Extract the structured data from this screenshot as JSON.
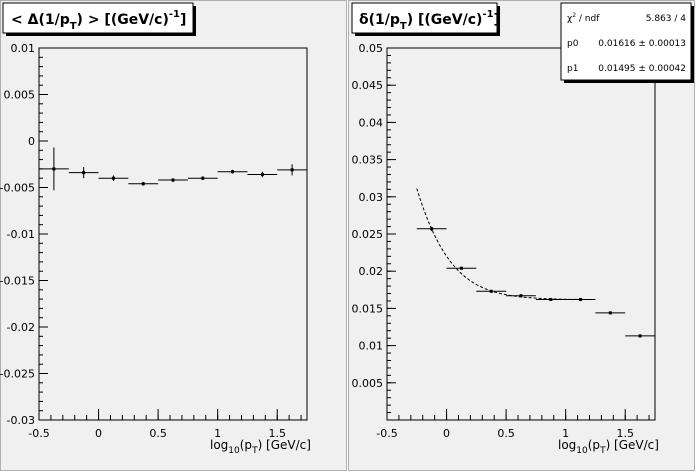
{
  "chart_data": [
    {
      "type": "scatter",
      "title_main": "< Δ(1/p",
      "title_sub": "T",
      "title_end": ") >  [(GeV/c)",
      "title_sup": "-1",
      "title_close": "]",
      "xlabel_main": "log",
      "xlabel_sub1": "10",
      "xlabel_mid": "(p",
      "xlabel_sub2": "T",
      "xlabel_end": ")  [GeV/c]",
      "xlim": [
        -0.5,
        1.75
      ],
      "ylim": [
        -0.03,
        0.01
      ],
      "x_ticks": [
        -0.5,
        0,
        0.5,
        1,
        1.5
      ],
      "x_tick_labels": [
        "-0.5",
        "0",
        "0.5",
        "1",
        "1.5"
      ],
      "y_ticks": [
        -0.03,
        -0.025,
        -0.02,
        -0.015,
        -0.01,
        -0.005,
        0,
        0.005,
        0.01
      ],
      "y_tick_labels": [
        "-0.03",
        "-0.025",
        "-0.02",
        "-0.015",
        "-0.01",
        "-0.005",
        "0",
        "0.005",
        "0.01"
      ],
      "points": [
        {
          "x": -0.375,
          "y": -0.003,
          "xerr": 0.125,
          "yerr": 0.0023
        },
        {
          "x": -0.125,
          "y": -0.0034,
          "xerr": 0.125,
          "yerr": 0.0006
        },
        {
          "x": 0.125,
          "y": -0.004,
          "xerr": 0.125,
          "yerr": 0.0003
        },
        {
          "x": 0.375,
          "y": -0.0046,
          "xerr": 0.125,
          "yerr": 0.0002
        },
        {
          "x": 0.625,
          "y": -0.0042,
          "xerr": 0.125,
          "yerr": 0.0002
        },
        {
          "x": 0.875,
          "y": -0.004,
          "xerr": 0.125,
          "yerr": 0.0002
        },
        {
          "x": 1.125,
          "y": -0.0033,
          "xerr": 0.125,
          "yerr": 0.0002
        },
        {
          "x": 1.375,
          "y": -0.0036,
          "xerr": 0.125,
          "yerr": 0.0003
        },
        {
          "x": 1.625,
          "y": -0.0031,
          "xerr": 0.125,
          "yerr": 0.0006
        }
      ]
    },
    {
      "type": "scatter",
      "title_main": "δ(1/p",
      "title_sub": "T",
      "title_end": ")  [(GeV/c)",
      "title_sup": "-1",
      "title_close": "]",
      "xlabel_main": "log",
      "xlabel_sub1": "10",
      "xlabel_mid": "(p",
      "xlabel_sub2": "T",
      "xlabel_end": ")  [GeV/c]",
      "xlim": [
        -0.5,
        1.75
      ],
      "ylim": [
        0,
        0.05
      ],
      "x_ticks": [
        -0.5,
        0,
        0.5,
        1,
        1.5
      ],
      "x_tick_labels": [
        "-0.5",
        "0",
        "0.5",
        "1",
        "1.5"
      ],
      "y_ticks": [
        0.005,
        0.01,
        0.015,
        0.02,
        0.025,
        0.03,
        0.035,
        0.04,
        0.045,
        0.05
      ],
      "y_tick_labels": [
        "0.005",
        "0.01",
        "0.015",
        "0.02",
        "0.025",
        "0.03",
        "0.035",
        "0.04",
        "0.045",
        "0.05"
      ],
      "points": [
        {
          "x": -0.125,
          "y": 0.0257,
          "xerr": 0.125,
          "yerr": 0.0003
        },
        {
          "x": 0.125,
          "y": 0.0204,
          "xerr": 0.125,
          "yerr": 0.0002
        },
        {
          "x": 0.375,
          "y": 0.0173,
          "xerr": 0.125,
          "yerr": 0.0002
        },
        {
          "x": 0.625,
          "y": 0.0167,
          "xerr": 0.125,
          "yerr": 0.0002
        },
        {
          "x": 0.875,
          "y": 0.0162,
          "xerr": 0.125,
          "yerr": 0.0002
        },
        {
          "x": 1.125,
          "y": 0.0162,
          "xerr": 0.125,
          "yerr": 0.0002
        },
        {
          "x": 1.375,
          "y": 0.0144,
          "xerr": 0.125,
          "yerr": 0.0002
        },
        {
          "x": 1.625,
          "y": 0.0113,
          "xerr": 0.125,
          "yerr": 0.0002
        }
      ],
      "fit_range": [
        -0.25,
        1.15
      ],
      "stats": {
        "chi2_label": "χ",
        "chi2_sup": "2",
        "chi2_rest": " / ndf",
        "chi2_value": "5.863 / 4",
        "p0_label": "p0",
        "p0_value": "0.01616 ± 0.00013",
        "p1_label": "p1",
        "p1_value": "0.01495 ± 0.00042"
      }
    }
  ],
  "colors": {
    "pad_fill": "#f0f0f0",
    "frame": "#000000",
    "box_fill": "#ffffff"
  }
}
